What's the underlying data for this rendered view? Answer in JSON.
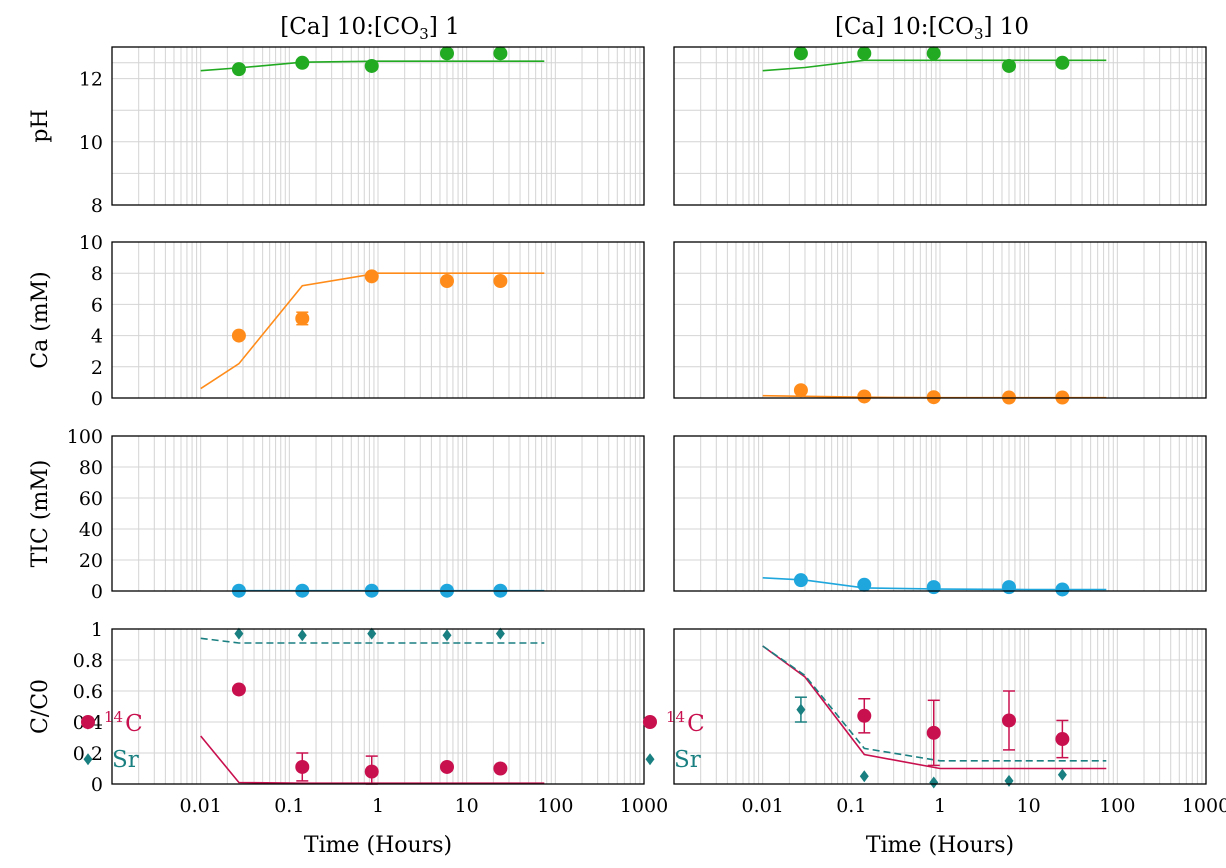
{
  "colors": {
    "pH": "#22aa22",
    "Ca": "#ff8c1a",
    "TIC": "#1fa7dd",
    "C14": "#c8104e",
    "Sr": "#1a7f80",
    "grid": "#d4d4d4"
  },
  "x_axis": {
    "label": "Time (Hours)",
    "scale": "log",
    "range": [
      0.001,
      1000
    ],
    "tick_labels": [
      "0.01",
      "0.1",
      "1",
      "10",
      "100",
      "1000"
    ]
  },
  "legend": {
    "c14_label": "C",
    "c14_superscript": "14",
    "sr_label": "Sr"
  },
  "chart_data": [
    {
      "type": "scatter",
      "panel": "pH, [Ca] 10:[CO3] 1",
      "title": "[Ca] 10:[CO3] 1",
      "ylabel": "pH",
      "yscale": "linear",
      "ylim": [
        8,
        13
      ],
      "yticks": [
        8,
        10,
        12
      ],
      "grid": true,
      "series": [
        {
          "role": "measured",
          "marker": "circle",
          "color": "#22aa22",
          "x": [
            0.027,
            0.14,
            0.85,
            6,
            24
          ],
          "y": [
            12.3,
            12.5,
            12.4,
            12.8,
            12.8
          ]
        },
        {
          "role": "model",
          "line": "solid",
          "color": "#22aa22",
          "x": [
            0.01,
            0.03,
            0.14,
            1,
            10,
            75
          ],
          "y": [
            12.25,
            12.35,
            12.52,
            12.55,
            12.55,
            12.55
          ]
        }
      ]
    },
    {
      "type": "scatter",
      "panel": "pH, [Ca] 10:[CO3] 10",
      "title": "[Ca] 10:[CO3] 10",
      "ylabel": "",
      "yscale": "linear",
      "ylim": [
        8,
        13
      ],
      "grid": true,
      "series": [
        {
          "role": "measured",
          "marker": "circle",
          "color": "#22aa22",
          "x": [
            0.027,
            0.14,
            0.85,
            6,
            24
          ],
          "y": [
            12.8,
            12.8,
            12.8,
            12.4,
            12.5
          ]
        },
        {
          "role": "model",
          "line": "solid",
          "color": "#22aa22",
          "x": [
            0.01,
            0.03,
            0.14,
            1,
            10,
            75
          ],
          "y": [
            12.25,
            12.35,
            12.58,
            12.58,
            12.58,
            12.58
          ]
        }
      ]
    },
    {
      "type": "scatter",
      "panel": "Ca, [Ca] 10:[CO3] 1",
      "ylabel": "Ca (mM)",
      "yscale": "linear",
      "ylim": [
        0,
        10
      ],
      "yticks": [
        0,
        2,
        4,
        6,
        8,
        10
      ],
      "grid": true,
      "series": [
        {
          "role": "measured",
          "marker": "circle",
          "color": "#ff8c1a",
          "x": [
            0.027,
            0.14,
            0.85,
            6,
            24
          ],
          "y": [
            4.0,
            5.1,
            7.8,
            7.5,
            7.5
          ],
          "err": [
            0,
            0.4,
            0,
            0,
            0
          ]
        },
        {
          "role": "model",
          "line": "solid",
          "color": "#ff8c1a",
          "x": [
            0.01,
            0.027,
            0.14,
            1,
            10,
            75
          ],
          "y": [
            0.6,
            2.2,
            7.2,
            8.0,
            8.0,
            8.0
          ]
        }
      ]
    },
    {
      "type": "scatter",
      "panel": "Ca, [Ca] 10:[CO3] 10",
      "ylabel": "",
      "yscale": "linear",
      "ylim": [
        0,
        10
      ],
      "grid": true,
      "series": [
        {
          "role": "measured",
          "marker": "circle",
          "color": "#ff8c1a",
          "x": [
            0.027,
            0.14,
            0.85,
            6,
            24
          ],
          "y": [
            0.5,
            0.1,
            0.05,
            0.03,
            0.03
          ]
        },
        {
          "role": "model",
          "line": "solid",
          "color": "#ff8c1a",
          "x": [
            0.01,
            0.14,
            1,
            10,
            75
          ],
          "y": [
            0.15,
            0.05,
            0.02,
            0.02,
            0.02
          ]
        }
      ]
    },
    {
      "type": "scatter",
      "panel": "TIC, [Ca] 10:[CO3] 1",
      "ylabel": "TIC (mM)",
      "yscale": "linear",
      "ylim": [
        0,
        100
      ],
      "yticks": [
        0,
        20,
        40,
        60,
        80,
        100
      ],
      "grid": true,
      "series": [
        {
          "role": "measured",
          "marker": "circle",
          "color": "#1fa7dd",
          "x": [
            0.027,
            0.14,
            0.85,
            6,
            24
          ],
          "y": [
            0.2,
            0.2,
            0.2,
            0.2,
            0.2
          ]
        },
        {
          "role": "model",
          "line": "solid",
          "color": "#1fa7dd",
          "x": [
            0.027,
            75
          ],
          "y": [
            0.2,
            0.2
          ]
        }
      ]
    },
    {
      "type": "scatter",
      "panel": "TIC, [Ca] 10:[CO3] 10",
      "ylabel": "",
      "yscale": "linear",
      "ylim": [
        0,
        100
      ],
      "grid": true,
      "series": [
        {
          "role": "measured",
          "marker": "circle",
          "color": "#1fa7dd",
          "x": [
            0.027,
            0.14,
            0.85,
            6,
            24
          ],
          "y": [
            7,
            4,
            2.5,
            2.5,
            1
          ]
        },
        {
          "role": "model",
          "line": "solid",
          "color": "#1fa7dd",
          "x": [
            0.01,
            0.03,
            0.14,
            1,
            10,
            75
          ],
          "y": [
            8.5,
            7,
            2,
            1.2,
            1,
            1
          ]
        }
      ]
    },
    {
      "type": "scatter",
      "panel": "C/C0, [Ca] 10:[CO3] 1",
      "ylabel": "C/C0",
      "yscale": "linear",
      "ylim": [
        0,
        1
      ],
      "yticks": [
        0,
        0.2,
        0.4,
        0.6,
        0.8,
        1
      ],
      "grid": true,
      "series": [
        {
          "role": "measured",
          "name": "14C",
          "marker": "circle",
          "color": "#c8104e",
          "x": [
            0.027,
            0.14,
            0.85,
            6,
            24
          ],
          "y": [
            0.61,
            0.11,
            0.08,
            0.11,
            0.1
          ],
          "err": [
            0,
            0.09,
            0.1,
            0,
            0
          ]
        },
        {
          "role": "model",
          "name": "14C",
          "line": "solid",
          "color": "#c8104e",
          "x": [
            0.01,
            0.027,
            0.14,
            1,
            10,
            75
          ],
          "y": [
            0.31,
            0.01,
            0.005,
            0.005,
            0.005,
            0.005
          ]
        },
        {
          "role": "measured",
          "name": "Sr",
          "marker": "diamond",
          "color": "#1a7f80",
          "x": [
            0.027,
            0.14,
            0.85,
            6,
            24
          ],
          "y": [
            0.97,
            0.96,
            0.97,
            0.96,
            0.97
          ]
        },
        {
          "role": "model",
          "name": "Sr",
          "line": "dashed",
          "color": "#1a7f80",
          "x": [
            0.01,
            0.027,
            0.14,
            1,
            10,
            75
          ],
          "y": [
            0.94,
            0.91,
            0.91,
            0.91,
            0.91,
            0.91
          ]
        }
      ]
    },
    {
      "type": "scatter",
      "panel": "C/C0, [Ca] 10:[CO3] 10",
      "ylabel": "",
      "yscale": "linear",
      "ylim": [
        0,
        1
      ],
      "grid": true,
      "series": [
        {
          "role": "measured",
          "name": "14C",
          "marker": "circle",
          "color": "#c8104e",
          "x": [
            0.14,
            0.85,
            6,
            24
          ],
          "y": [
            0.44,
            0.33,
            0.41,
            0.29
          ],
          "err": [
            0.11,
            0.21,
            0.19,
            0.12
          ]
        },
        {
          "role": "model",
          "name": "14C",
          "line": "solid",
          "color": "#c8104e",
          "x": [
            0.01,
            0.03,
            0.14,
            1,
            10,
            75
          ],
          "y": [
            0.89,
            0.69,
            0.19,
            0.1,
            0.1,
            0.1
          ]
        },
        {
          "role": "measured",
          "name": "Sr",
          "marker": "diamond",
          "color": "#1a7f80",
          "x": [
            0.027,
            0.14,
            0.85,
            6,
            24
          ],
          "y": [
            0.48,
            0.05,
            0.01,
            0.02,
            0.06
          ],
          "err": [
            0.08,
            0,
            0,
            0,
            0
          ]
        },
        {
          "role": "model",
          "name": "Sr",
          "line": "dashed",
          "color": "#1a7f80",
          "x": [
            0.01,
            0.03,
            0.14,
            1,
            10,
            75
          ],
          "y": [
            0.89,
            0.7,
            0.23,
            0.15,
            0.15,
            0.15
          ]
        }
      ]
    }
  ]
}
